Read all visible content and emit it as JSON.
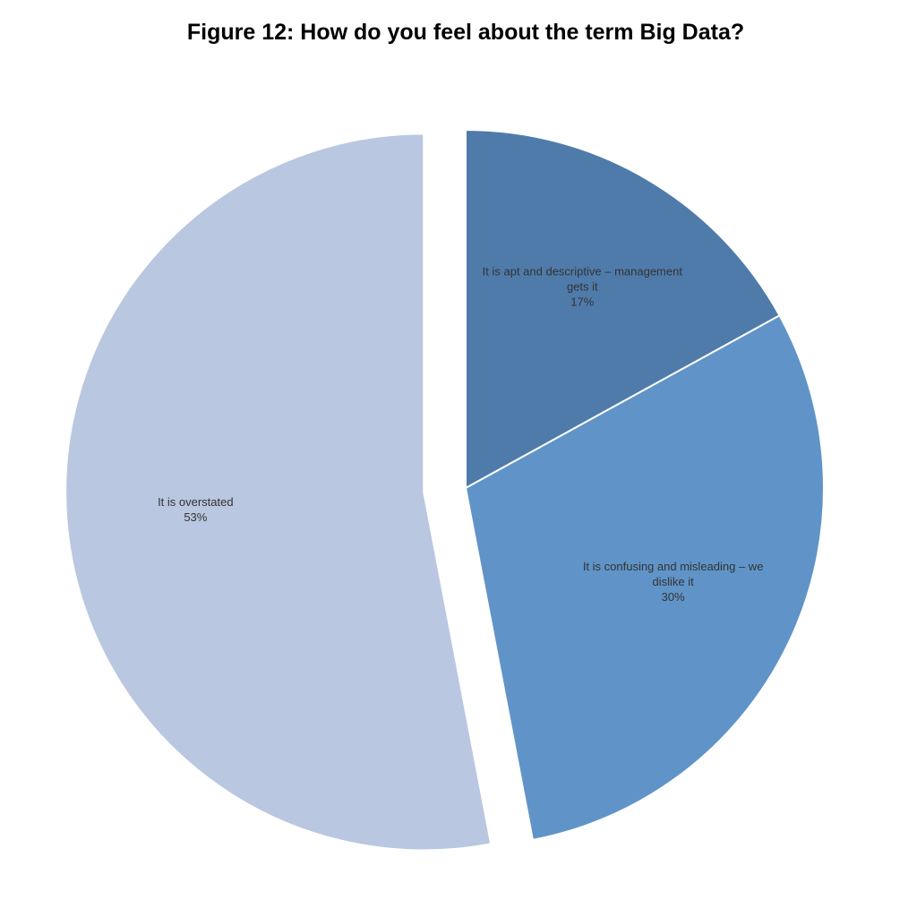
{
  "chart_data": {
    "type": "pie",
    "title": "Figure 12: How do you feel about the term Big Data?",
    "categories": [
      "It is apt and descriptive – management gets it",
      "It is confusing and misleading – we dislike it",
      "It is overstated"
    ],
    "values": [
      17,
      30,
      53
    ],
    "value_labels": [
      "17%",
      "30%",
      "53%"
    ],
    "colors": [
      "#4f7bab",
      "#6094c8",
      "#b9c7e0"
    ]
  }
}
